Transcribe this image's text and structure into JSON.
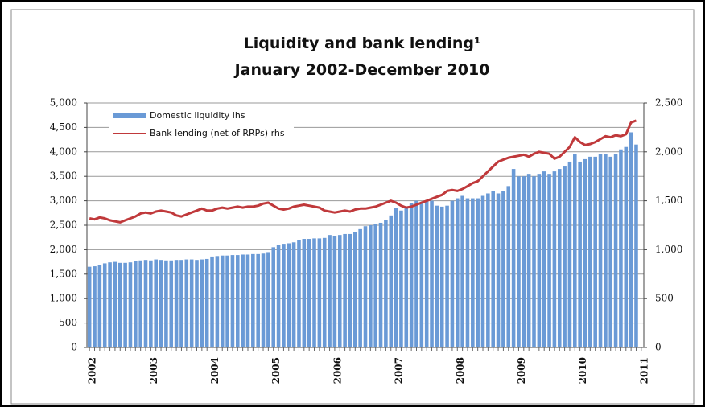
{
  "chart_data": {
    "type": "bar_line",
    "title": "Liquidity and bank lending¹",
    "subtitle": "January 2002-December 2010",
    "categories": [
      "2002",
      null,
      null,
      null,
      null,
      null,
      null,
      null,
      null,
      null,
      null,
      null,
      "2003",
      null,
      null,
      null,
      null,
      null,
      null,
      null,
      null,
      null,
      null,
      null,
      "2004",
      null,
      null,
      null,
      null,
      null,
      null,
      null,
      null,
      null,
      null,
      null,
      "2005",
      null,
      null,
      null,
      null,
      null,
      null,
      null,
      null,
      null,
      null,
      null,
      "2006",
      null,
      null,
      null,
      null,
      null,
      null,
      null,
      null,
      null,
      null,
      null,
      "2007",
      null,
      null,
      null,
      null,
      null,
      null,
      null,
      null,
      null,
      null,
      null,
      "2008",
      null,
      null,
      null,
      null,
      null,
      null,
      null,
      null,
      null,
      null,
      null,
      "2009",
      null,
      null,
      null,
      null,
      null,
      null,
      null,
      null,
      null,
      null,
      null,
      "2010",
      null,
      null,
      null,
      null,
      null,
      null,
      null,
      null,
      null,
      null,
      null,
      "2011"
    ],
    "series": [
      {
        "name": "Domestic liquidity   lhs",
        "color": "#6a9ad6",
        "kind": "bar",
        "axis": "y",
        "values": [
          1650,
          1660,
          1680,
          1720,
          1740,
          1750,
          1730,
          1730,
          1740,
          1760,
          1780,
          1790,
          1780,
          1800,
          1790,
          1780,
          1780,
          1790,
          1790,
          1800,
          1800,
          1790,
          1800,
          1810,
          1860,
          1870,
          1880,
          1880,
          1890,
          1890,
          1900,
          1900,
          1910,
          1910,
          1920,
          1950,
          2050,
          2100,
          2120,
          2130,
          2150,
          2200,
          2220,
          2220,
          2230,
          2230,
          2240,
          2300,
          2280,
          2300,
          2320,
          2320,
          2360,
          2420,
          2480,
          2500,
          2520,
          2550,
          2600,
          2700,
          2850,
          2800,
          2880,
          2950,
          3000,
          2950,
          3000,
          3000,
          2900,
          2880,
          2900,
          3000,
          3050,
          3100,
          3050,
          3050,
          3050,
          3100,
          3150,
          3200,
          3150,
          3200,
          3300,
          3650,
          3500,
          3500,
          3550,
          3500,
          3550,
          3600,
          3550,
          3600,
          3650,
          3700,
          3800,
          3950,
          3800,
          3850,
          3900,
          3900,
          3950,
          3950,
          3900,
          3950,
          4050,
          4100,
          4400,
          4150,
          null
        ]
      },
      {
        "name": "Bank lending (net of RRPs)   rhs",
        "color": "#c0393b",
        "kind": "line",
        "axis": "y2",
        "values": [
          1320,
          1310,
          1330,
          1320,
          1300,
          1290,
          1280,
          1300,
          1320,
          1340,
          1370,
          1380,
          1370,
          1390,
          1400,
          1390,
          1380,
          1350,
          1340,
          1360,
          1380,
          1400,
          1420,
          1400,
          1400,
          1420,
          1430,
          1420,
          1430,
          1440,
          1430,
          1440,
          1440,
          1450,
          1470,
          1480,
          1450,
          1420,
          1410,
          1420,
          1440,
          1450,
          1460,
          1450,
          1440,
          1430,
          1400,
          1390,
          1380,
          1390,
          1400,
          1390,
          1410,
          1420,
          1420,
          1430,
          1440,
          1460,
          1480,
          1500,
          1480,
          1450,
          1430,
          1440,
          1460,
          1480,
          1500,
          1520,
          1540,
          1560,
          1600,
          1610,
          1600,
          1620,
          1650,
          1680,
          1700,
          1750,
          1800,
          1850,
          1900,
          1920,
          1940,
          1950,
          1960,
          1970,
          1950,
          1980,
          2000,
          1990,
          1980,
          1930,
          1950,
          2000,
          2050,
          2150,
          2100,
          2070,
          2080,
          2100,
          2130,
          2160,
          2150,
          2170,
          2160,
          2180,
          2300,
          2320,
          null
        ]
      }
    ],
    "ylim": [
      0,
      5000
    ],
    "yticks": [
      0,
      500,
      {
        "value": 1000,
        "label": "1,000"
      },
      {
        "value": 1500,
        "label": "1,500"
      },
      {
        "value": 2000,
        "label": "2,000"
      },
      {
        "value": 2500,
        "label": "2,500"
      },
      {
        "value": 3000,
        "label": "3,000"
      },
      {
        "value": 3500,
        "label": "3,500"
      },
      {
        "value": 4000,
        "label": "4,000"
      },
      {
        "value": 4500,
        "label": "4,500"
      },
      {
        "value": 5000,
        "label": "5,000"
      }
    ],
    "y2lim": [
      0,
      2500
    ],
    "y2ticks": [
      0,
      500,
      {
        "value": 1000,
        "label": "1,000"
      },
      {
        "value": 1500,
        "label": "1,500"
      },
      {
        "value": 2000,
        "label": "2,000"
      },
      {
        "value": 2500,
        "label": "2,500"
      }
    ],
    "grid": true,
    "legend": "top-left"
  }
}
